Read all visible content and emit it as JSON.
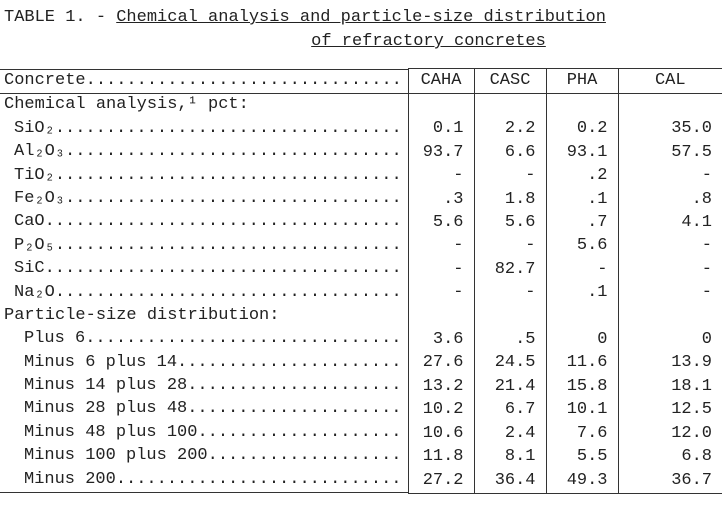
{
  "title": {
    "prefix": "TABLE 1. -",
    "line1": "Chemical analysis and particle-size distribution",
    "line2": "of refractory concretes"
  },
  "table": {
    "columns": [
      "Concrete",
      "CAHA",
      "CASC",
      "PHA",
      "CAL"
    ],
    "sections": [
      {
        "heading": "Chemical analysis,¹ pct:",
        "rows": [
          {
            "label": "SiO₂",
            "values": [
              "0.1",
              "2.2",
              "0.2",
              "35.0"
            ]
          },
          {
            "label": "Al₂O₃",
            "values": [
              "93.7",
              "6.6",
              "93.1",
              "57.5"
            ]
          },
          {
            "label": "TiO₂",
            "values": [
              "-",
              "-",
              ".2",
              "-"
            ]
          },
          {
            "label": "Fe₂O₃",
            "values": [
              ".3",
              "1.8",
              ".1",
              ".8"
            ]
          },
          {
            "label": "CaO",
            "values": [
              "5.6",
              "5.6",
              ".7",
              "4.1"
            ]
          },
          {
            "label": "P₂O₅",
            "values": [
              "-",
              "-",
              "5.6",
              "-"
            ]
          },
          {
            "label": "SiC",
            "values": [
              "-",
              "82.7",
              "-",
              "-"
            ]
          },
          {
            "label": "Na₂O",
            "values": [
              "-",
              "-",
              ".1",
              "-"
            ]
          }
        ]
      },
      {
        "heading": "Particle-size distribution:",
        "rows": [
          {
            "label": "Plus 6",
            "values": [
              "3.6",
              ".5",
              "0",
              "0"
            ]
          },
          {
            "label": "Minus 6 plus 14",
            "values": [
              "27.6",
              "24.5",
              "11.6",
              "13.9"
            ]
          },
          {
            "label": "Minus 14 plus 28",
            "values": [
              "13.2",
              "21.4",
              "15.8",
              "18.1"
            ]
          },
          {
            "label": "Minus 28 plus 48",
            "values": [
              "10.2",
              "6.7",
              "10.1",
              "12.5"
            ]
          },
          {
            "label": "Minus 48 plus 100",
            "values": [
              "10.6",
              "2.4",
              "7.6",
              "12.0"
            ]
          },
          {
            "label": "Minus 100 plus 200",
            "values": [
              "11.8",
              "8.1",
              "5.5",
              "6.8"
            ]
          },
          {
            "label": "Minus 200",
            "values": [
              "27.2",
              "36.4",
              "49.3",
              "36.7"
            ]
          }
        ]
      }
    ]
  }
}
